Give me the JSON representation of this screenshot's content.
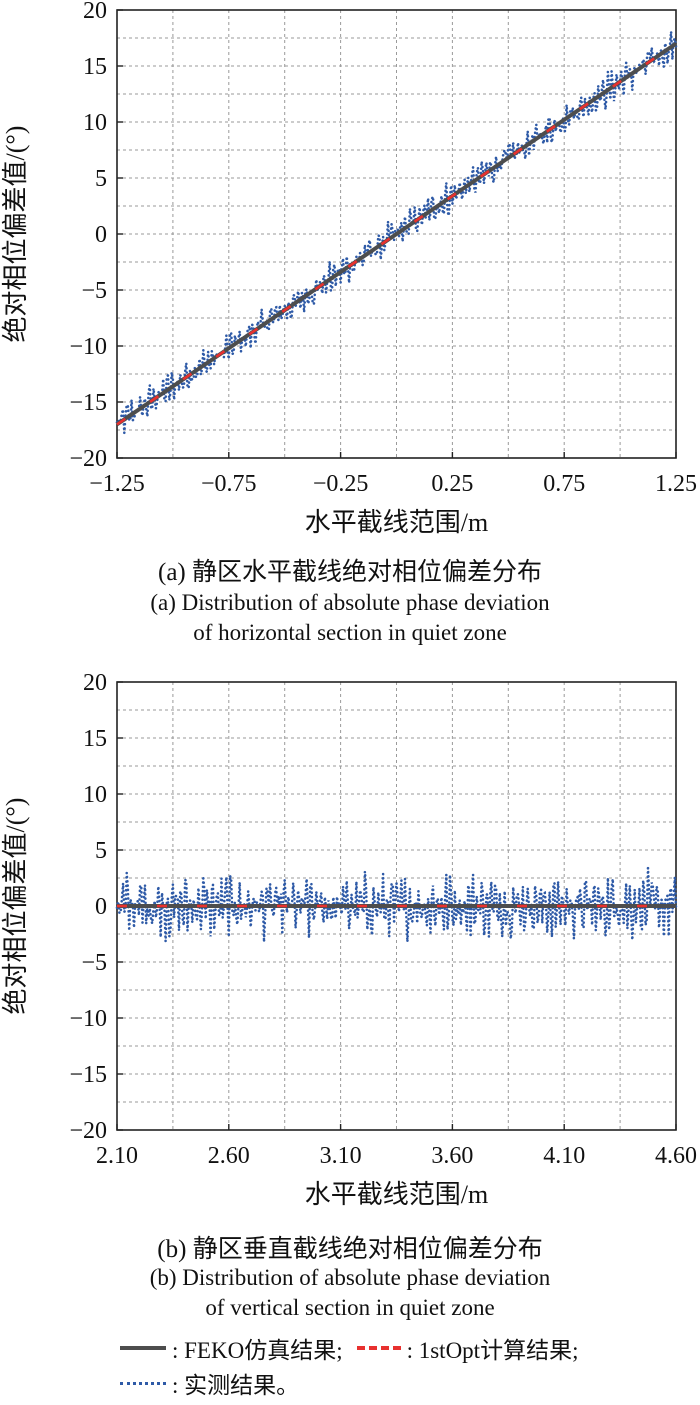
{
  "chart_data": [
    {
      "type": "line",
      "caption_zh": "(a) 静区水平截线绝对相位偏差分布",
      "caption_en_line1": "(a) Distribution of absolute phase deviation",
      "caption_en_line2": "of horizontal section in quiet zone",
      "xlabel": "水平截线范围/m",
      "ylabel": "绝对相位偏差值/(°)",
      "xlim": [
        -1.25,
        1.25
      ],
      "ylim": [
        -20,
        20
      ],
      "x_ticks": [
        "−1.25",
        "−0.75",
        "−0.25",
        "0.25",
        "0.75",
        "1.25"
      ],
      "y_ticks": [
        "20",
        "15",
        "10",
        "5",
        "0",
        "−5",
        "−10",
        "−15",
        "−20"
      ],
      "grid": true,
      "series": [
        {
          "name": "FEKO仿真结果",
          "style": "solid",
          "color": "#4d4d4d",
          "x": [
            -1.25,
            1.25
          ],
          "y": [
            -17,
            17
          ]
        },
        {
          "name": "1stOpt计算结果",
          "style": "dashed",
          "color": "#e8312f",
          "x": [
            -1.25,
            1.25
          ],
          "y": [
            -17,
            17
          ]
        },
        {
          "name": "实测结果",
          "style": "dotted",
          "color": "#2e5aa7",
          "trend": [
            -17,
            17
          ],
          "spread": 1.6
        }
      ]
    },
    {
      "type": "line",
      "caption_zh": "(b) 静区垂直截线绝对相位偏差分布",
      "caption_en_line1": "(b) Distribution of absolute phase deviation",
      "caption_en_line2": "of vertical section in quiet zone",
      "xlabel": "水平截线范围/m",
      "ylabel": "绝对相位偏差值/(°)",
      "xlim": [
        2.1,
        4.6
      ],
      "ylim": [
        -20,
        20
      ],
      "x_ticks": [
        "2.10",
        "2.60",
        "3.10",
        "3.60",
        "4.10",
        "4.60"
      ],
      "y_ticks": [
        "20",
        "15",
        "10",
        "5",
        "0",
        "−5",
        "−10",
        "−15",
        "−20"
      ],
      "grid": true,
      "series": [
        {
          "name": "FEKO仿真结果",
          "style": "solid",
          "color": "#4d4d4d",
          "x": [
            2.1,
            4.6
          ],
          "y": [
            0,
            0
          ]
        },
        {
          "name": "1stOpt计算结果",
          "style": "dashed",
          "color": "#e8312f",
          "x": [
            2.1,
            4.6
          ],
          "y": [
            0,
            0
          ]
        },
        {
          "name": "实测结果",
          "style": "dotted",
          "color": "#2e5aa7",
          "trend": [
            0,
            0
          ],
          "spread": 3.0
        }
      ]
    }
  ],
  "legend": {
    "sim": ": FEKO仿真结果;",
    "calc": ": 1stOpt计算结果;",
    "meas": ": 实测结果。"
  },
  "colors": {
    "sim": "#4d4d4d",
    "calc": "#e8312f",
    "meas": "#2e5aa7",
    "grid": "#9a9a9a"
  }
}
